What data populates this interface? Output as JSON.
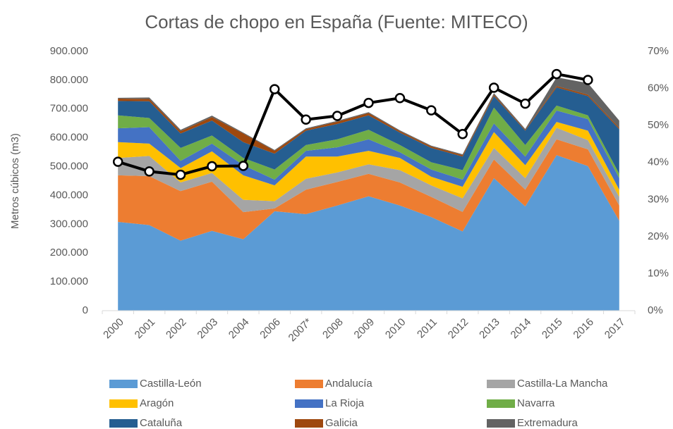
{
  "chart_data": {
    "type": "stacked_area",
    "title": "Cortas de chopo en España (Fuente: MITECO)",
    "y_axis_label": "Metros cúbicos (m3)",
    "categories": [
      "2000",
      "2001",
      "2002",
      "2003",
      "2004",
      "2006",
      "2007*",
      "2008",
      "2009",
      "2010",
      "2011",
      "2012",
      "2013",
      "2014",
      "2015",
      "2016",
      "2017"
    ],
    "series": [
      {
        "name": "Castilla-León",
        "color": "#5b9bd5",
        "values": [
          308000,
          297000,
          243000,
          277000,
          248000,
          345000,
          335000,
          365000,
          397000,
          365000,
          325000,
          275000,
          460000,
          362000,
          540000,
          502000,
          312000
        ]
      },
      {
        "name": "Andalucía",
        "color": "#ed7d31",
        "values": [
          162000,
          170000,
          172000,
          171000,
          94000,
          10000,
          85000,
          82000,
          78000,
          80000,
          70000,
          68000,
          65000,
          58000,
          55000,
          58000,
          53000
        ]
      },
      {
        "name": "Castilla-La Mancha",
        "color": "#a5a5a5",
        "values": [
          60000,
          70000,
          30000,
          30000,
          43000,
          25000,
          38000,
          33000,
          33000,
          43000,
          40000,
          47000,
          40000,
          40000,
          40000,
          32000,
          30000
        ]
      },
      {
        "name": "Aragón",
        "color": "#ffc000",
        "values": [
          55000,
          43000,
          50000,
          75000,
          85000,
          55000,
          77000,
          55000,
          47000,
          42000,
          30000,
          40000,
          55000,
          45000,
          20000,
          33000,
          25000
        ]
      },
      {
        "name": "La Rioja",
        "color": "#4472c4",
        "values": [
          48000,
          57000,
          25000,
          27000,
          35000,
          20000,
          20000,
          32000,
          40000,
          20000,
          25000,
          25000,
          30000,
          30000,
          40000,
          40000,
          40000
        ]
      },
      {
        "name": "Navarra",
        "color": "#70ad47",
        "values": [
          45000,
          32000,
          45000,
          28000,
          25000,
          35000,
          20000,
          28000,
          33000,
          25000,
          25000,
          33000,
          55000,
          40000,
          17000,
          13000,
          15000
        ]
      },
      {
        "name": "Cataluña",
        "color": "#255e91",
        "values": [
          50000,
          58000,
          50000,
          52000,
          55000,
          55000,
          50000,
          53000,
          50000,
          43000,
          50000,
          47000,
          40000,
          50000,
          63000,
          67000,
          155000
        ]
      },
      {
        "name": "Galicia",
        "color": "#9e480e",
        "values": [
          8000,
          8000,
          8000,
          12000,
          30000,
          10000,
          5000,
          8000,
          8000,
          5000,
          5000,
          5000,
          5000,
          3000,
          5000,
          5000,
          5000
        ]
      },
      {
        "name": "Extremadura",
        "color": "#636363",
        "values": [
          3000,
          5000,
          5000,
          5000,
          3000,
          3000,
          3000,
          3000,
          3000,
          3000,
          3000,
          3000,
          5000,
          3000,
          30000,
          40000,
          25000
        ]
      }
    ],
    "line": {
      "color": "#000000",
      "axis": "y2",
      "values": [
        40.2,
        37.6,
        36.7,
        39.0,
        39.1,
        59.8,
        51.6,
        52.6,
        56.1,
        57.4,
        54.1,
        47.7,
        60.2,
        55.9,
        63.9,
        62.3,
        null
      ]
    },
    "ylim": [
      0,
      900000
    ],
    "yticks": [
      0,
      {
        "value": 100000,
        "label": "100.000"
      },
      {
        "value": 200000,
        "label": "200.000"
      },
      {
        "value": 300000,
        "label": "300.000"
      },
      {
        "value": 400000,
        "label": "400.000"
      },
      {
        "value": 500000,
        "label": "500.000"
      },
      {
        "value": 600000,
        "label": "600.000"
      },
      {
        "value": 700000,
        "label": "700.000"
      },
      {
        "value": 800000,
        "label": "800.000"
      },
      {
        "value": 900000,
        "label": "900.000"
      }
    ],
    "y2lim": [
      0,
      70
    ],
    "y2ticks": [
      {
        "value": 0,
        "label": "0%"
      },
      {
        "value": 10,
        "label": "10%"
      },
      {
        "value": 20,
        "label": "20%"
      },
      {
        "value": 30,
        "label": "30%"
      },
      {
        "value": 40,
        "label": "40%"
      },
      {
        "value": 50,
        "label": "50%"
      },
      {
        "value": 60,
        "label": "60%"
      },
      {
        "value": 70,
        "label": "70%"
      }
    ],
    "legend": "bottom"
  }
}
